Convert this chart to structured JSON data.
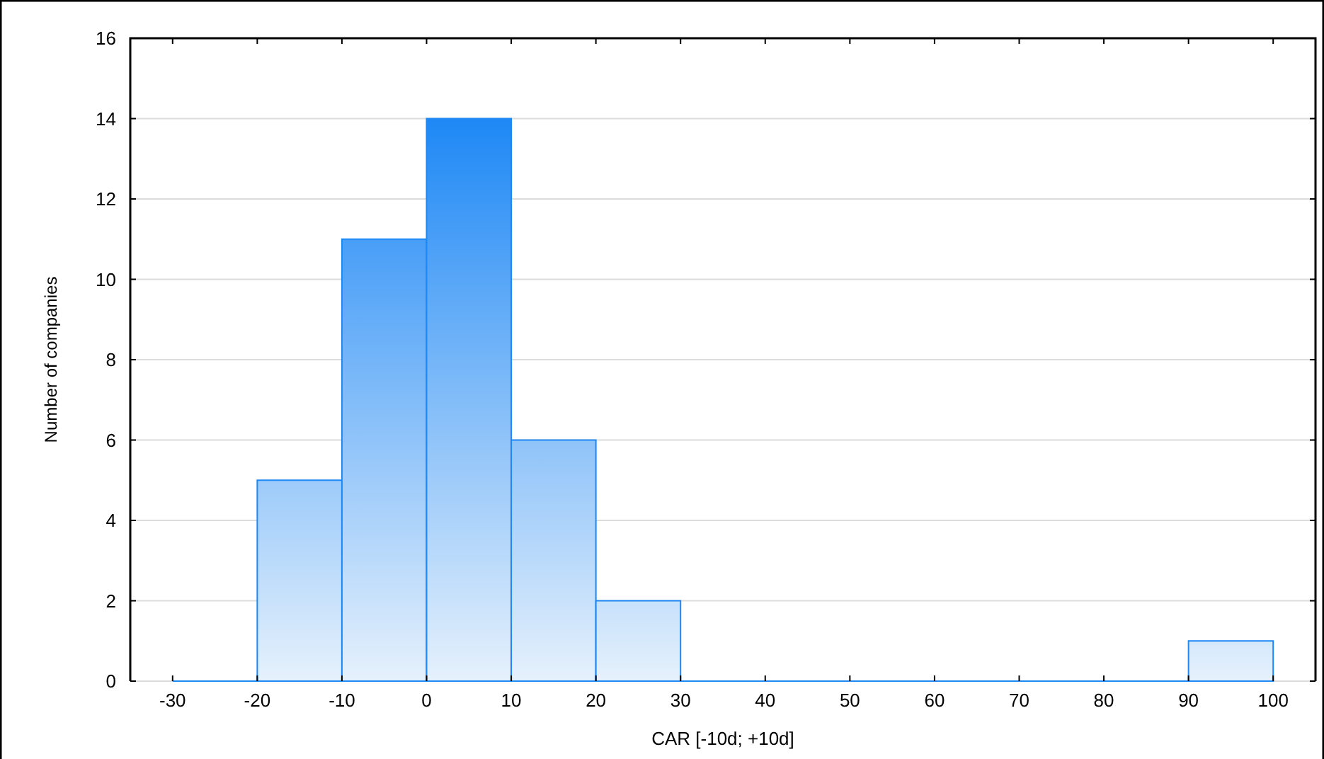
{
  "chart_data": {
    "type": "histogram",
    "xlabel": "CAR [-10d; +10d]",
    "ylabel": "Number of companies",
    "bins": [
      -30,
      -20,
      -10,
      0,
      10,
      20,
      30,
      40,
      50,
      60,
      70,
      80,
      90,
      100
    ],
    "values": [
      0,
      5,
      11,
      14,
      6,
      2,
      0,
      0,
      0,
      0,
      0,
      0,
      1
    ],
    "color": "#1e88f5",
    "xlim": [
      -35,
      105
    ],
    "xticks": [
      -30,
      -20,
      -10,
      0,
      10,
      20,
      30,
      40,
      50,
      60,
      70,
      80,
      90,
      100
    ],
    "ylim": [
      0,
      16
    ],
    "yticks": [
      0,
      2,
      4,
      6,
      8,
      10,
      12,
      14,
      16
    ],
    "grid": "y"
  }
}
